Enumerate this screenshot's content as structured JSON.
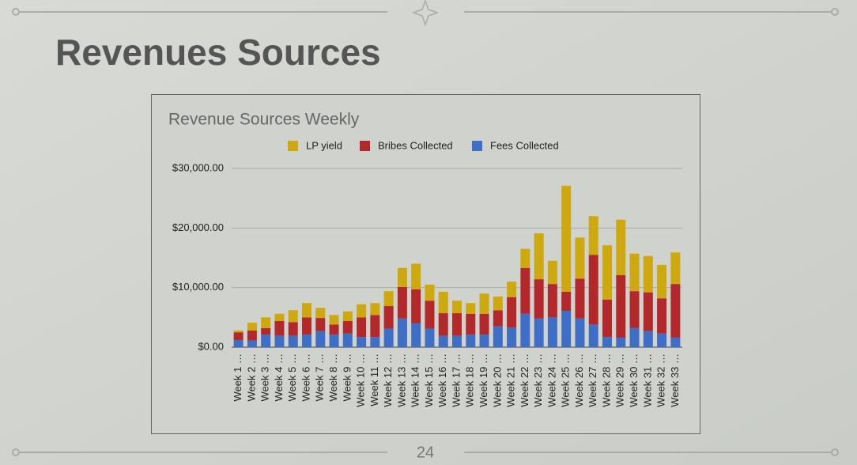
{
  "slide": {
    "title": "Revenues Sources",
    "page_number": 24
  },
  "chart_data": {
    "type": "stacked-bar",
    "title": "Revenue Sources Weekly",
    "categories": [
      "Week 1 …",
      "Week 2 …",
      "Week 3 …",
      "Week 4 …",
      "Week 5 …",
      "Week 6 …",
      "Week 7 …",
      "Week 8 …",
      "Week 9 …",
      "Week 10 …",
      "Week 11 …",
      "Week 12 …",
      "Week 13 …",
      "Week 14 …",
      "Week 15 …",
      "Week 16 …",
      "Week 17 …",
      "Week 18 …",
      "Week 19 …",
      "Week 20 …",
      "Week 21 …",
      "Week 22 …",
      "Week 23 …",
      "Week 24 …",
      "Week 25 …",
      "Week 26 …",
      "Week 27 …",
      "Week 28 …",
      "Week 29 …",
      "Week 30 …",
      "Week 31 …",
      "Week 32 …",
      "Week 33 …"
    ],
    "series": [
      {
        "name": "LP yield",
        "color": "#cda80e",
        "values": [
          300,
          1300,
          1800,
          1200,
          2000,
          2400,
          1700,
          1600,
          1600,
          2200,
          2000,
          2500,
          3200,
          4300,
          2700,
          3600,
          2100,
          1800,
          3400,
          2300,
          2600,
          3200,
          7700,
          3900,
          17800,
          6900,
          6500,
          9100,
          9300,
          6300,
          6100,
          5600,
          5300
        ]
      },
      {
        "name": "Bribes Collected",
        "color": "#b3282a",
        "values": [
          1300,
          1700,
          1100,
          2500,
          2300,
          2900,
          2200,
          1700,
          2100,
          3300,
          3700,
          3800,
          5300,
          5700,
          4700,
          3800,
          3800,
          3500,
          3500,
          2700,
          5100,
          7700,
          6600,
          5600,
          3200,
          6700,
          11700,
          6300,
          10500,
          6200,
          6500,
          5900,
          9000
        ]
      },
      {
        "name": "Fees Collected",
        "color": "#3f6ec6",
        "values": [
          1200,
          1100,
          2100,
          1900,
          1900,
          2100,
          2700,
          2100,
          2300,
          1700,
          1700,
          3100,
          4800,
          4000,
          3100,
          1900,
          1900,
          2100,
          2100,
          3500,
          3300,
          5600,
          4800,
          5000,
          6100,
          4800,
          3800,
          1700,
          1600,
          3200,
          2700,
          2300,
          1600
        ]
      }
    ],
    "ylim": [
      0,
      30000
    ],
    "yticks": [
      {
        "value": 0,
        "label": "$0.00"
      },
      {
        "value": 10000,
        "label": "$10,000.00"
      },
      {
        "value": 20000,
        "label": "$20,000.00"
      },
      {
        "value": 30000,
        "label": "$30,000.00"
      }
    ],
    "grid": true,
    "legend": "top"
  }
}
